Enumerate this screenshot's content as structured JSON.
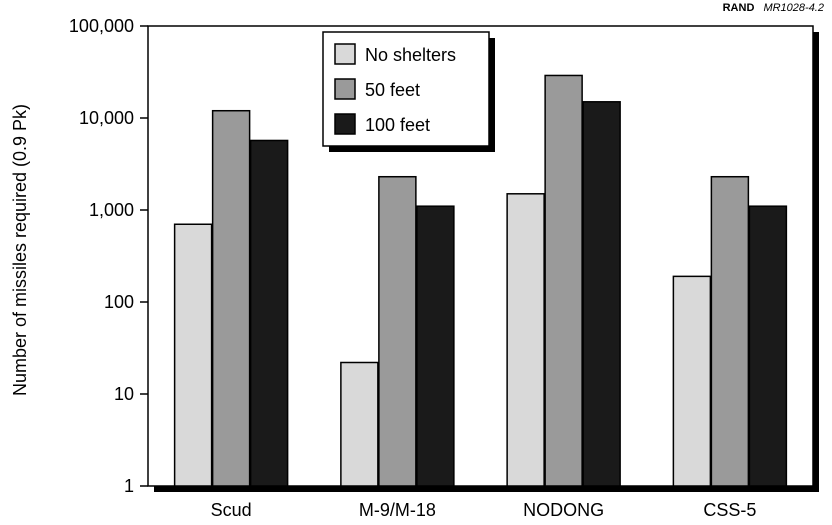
{
  "credit": {
    "org": "RAND",
    "code": "MR1028-4.2"
  },
  "chart_data": {
    "type": "bar",
    "log_scale": true,
    "ylabel": "Number of missiles required (0.9 Pk)",
    "xlabel": "",
    "ylim": [
      1,
      100000
    ],
    "yticks": [
      1,
      10,
      100,
      1000,
      10000,
      100000
    ],
    "ytick_labels": [
      "1",
      "10",
      "100",
      "1,000",
      "10,000",
      "100,000"
    ],
    "categories": [
      "Scud",
      "M-9/M-18",
      "NODONG",
      "CSS-5"
    ],
    "series": [
      {
        "name": "No shelters",
        "color": "#d9d9d9",
        "values": [
          700,
          22,
          1500,
          190
        ]
      },
      {
        "name": "50 feet",
        "color": "#9a9a9a",
        "values": [
          12000,
          2300,
          29000,
          2300
        ]
      },
      {
        "name": "100 feet",
        "color": "#1a1a1a",
        "values": [
          5700,
          1100,
          15000,
          1100
        ]
      }
    ],
    "legend_position": "top-center",
    "grid": false
  }
}
